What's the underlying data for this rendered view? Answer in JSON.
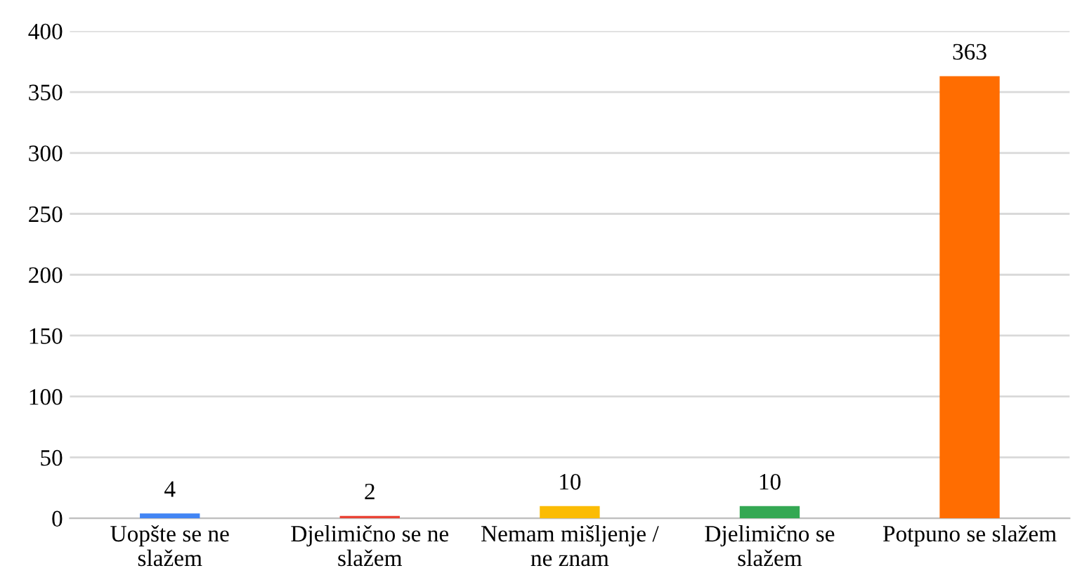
{
  "chart_data": {
    "type": "bar",
    "categories": [
      "Uopšte se ne\nslažem",
      "Djelimično se ne\nslažem",
      "Nemam mišljenje /\nne znam",
      "Djelimično se\nslažem",
      "Potpuno se slažem"
    ],
    "values": [
      4,
      2,
      10,
      10,
      363
    ],
    "colors": [
      "#4285f4",
      "#ea4335",
      "#fbbc04",
      "#34a853",
      "#ff6d01"
    ],
    "ylim": [
      0,
      400
    ],
    "yticks": [
      0,
      50,
      100,
      150,
      200,
      250,
      300,
      350,
      400
    ],
    "grid": "y",
    "data_labels": true
  }
}
